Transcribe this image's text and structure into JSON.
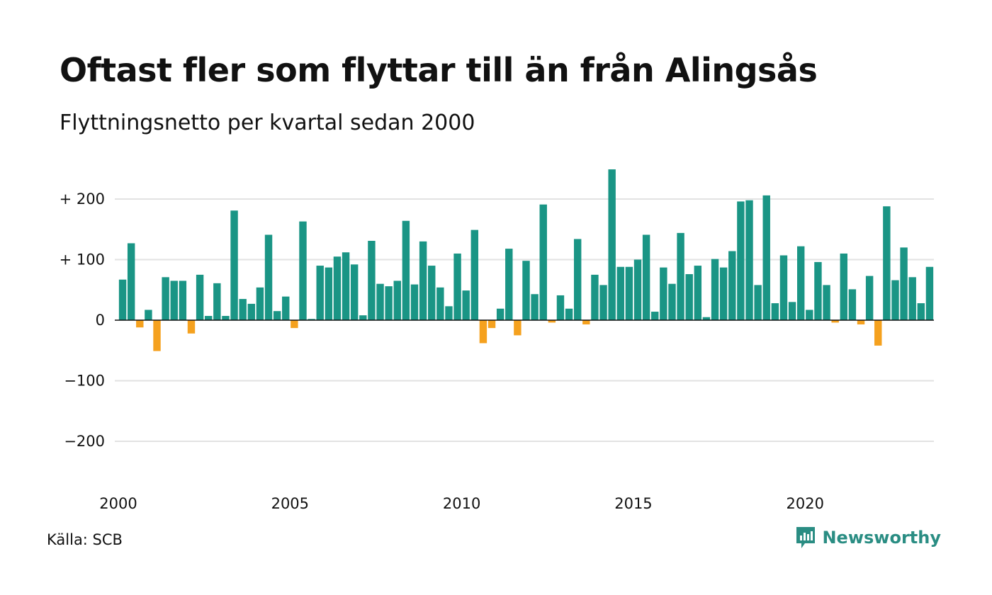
{
  "title": "Oftast fler som flyttar till än från Alingsås",
  "subtitle": "Flyttningsnetto per kvartal sedan 2000",
  "source": "Källa: SCB",
  "brand": {
    "name": "Newsworthy",
    "icon": "newsworthy-logo-icon",
    "color": "#2a8d83"
  },
  "chart_data": {
    "type": "bar",
    "x_start": "2000 Q1",
    "x_end": "2023 Q4",
    "x_tick_labels": [
      "2000",
      "2005",
      "2010",
      "2015",
      "2020"
    ],
    "y_tick_labels": [
      "+ 200",
      "+ 100",
      "0",
      "−100",
      "−200"
    ],
    "ylim": [
      -250,
      250
    ],
    "grid": true,
    "colors": {
      "positive": "#1a9585",
      "negative": "#f5a11e",
      "grid": "#e2e2e2",
      "zero": "#111111"
    },
    "values": [
      67,
      127,
      -12,
      17,
      -51,
      71,
      65,
      65,
      -22,
      75,
      7,
      61,
      7,
      181,
      35,
      27,
      54,
      141,
      15,
      39,
      -13,
      163,
      2,
      90,
      87,
      105,
      112,
      92,
      8,
      131,
      60,
      56,
      65,
      164,
      59,
      130,
      90,
      54,
      23,
      110,
      49,
      149,
      -38,
      -13,
      19,
      118,
      -25,
      98,
      43,
      191,
      -4,
      41,
      19,
      134,
      -7,
      75,
      58,
      249,
      88,
      88,
      100,
      141,
      14,
      87,
      60,
      144,
      76,
      90,
      5,
      101,
      87,
      114,
      196,
      198,
      58,
      206,
      28,
      107,
      30,
      122,
      17,
      96,
      58,
      -4,
      110,
      51,
      -7,
      73,
      -42,
      188,
      66,
      120,
      71,
      28,
      88
    ]
  }
}
